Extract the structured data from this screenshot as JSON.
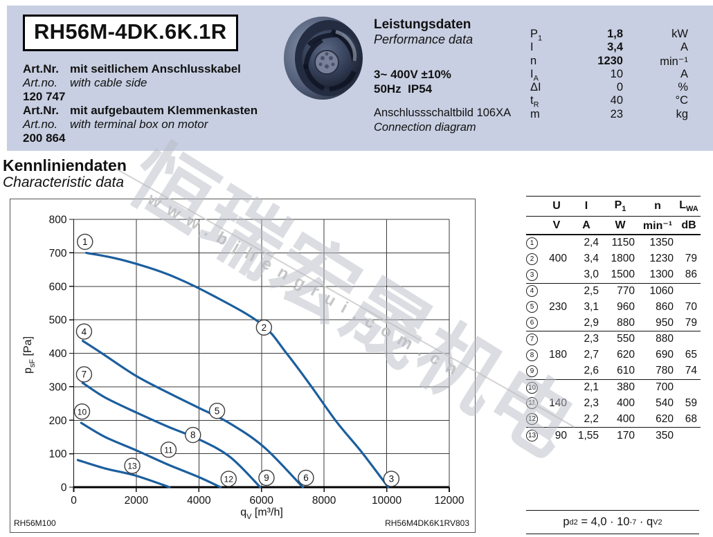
{
  "page": {
    "band_color": "#c8cfe2",
    "curve_blue": "#1b5e9e"
  },
  "header": {
    "model": "RH56M-4DK.6K.1R",
    "art_blocks": [
      {
        "label_de": "Art.Nr.",
        "text_de": "mit seitlichem Anschlusskabel",
        "label_en": "Art.no.",
        "text_en": "with cable side",
        "number": "120 747"
      },
      {
        "label_de": "Art.Nr.",
        "text_de": "mit aufgebautem Klemmenkasten",
        "label_en": "Art.no.",
        "text_en": "with terminal box on motor",
        "number": "200 864"
      }
    ],
    "fan_image": "centrifugal-fan-photo",
    "performance": {
      "title_de": "Leistungsdaten",
      "title_en": "Performance data",
      "voltage": "3~ 400V ±10%",
      "freq_ip": "50Hz  IP54",
      "connection_de": "Anschlussschaltbild 106XA",
      "connection_en": "Connection diagram",
      "params": [
        {
          "sym": "P",
          "sub": "1",
          "value": "1,8",
          "unit": "kW",
          "bold": true
        },
        {
          "sym": "I",
          "sub": "",
          "value": "3,4",
          "unit": "A",
          "bold": true
        },
        {
          "sym": "n",
          "sub": "",
          "value": "1230",
          "unit": "min⁻¹",
          "bold": true
        },
        {
          "sym": "I",
          "sub": "A",
          "value": "10",
          "unit": "A",
          "bold": false
        },
        {
          "sym": "ΔI",
          "sub": "",
          "value": "0",
          "unit": "%",
          "bold": false
        },
        {
          "sym": "t",
          "sub": "R",
          "value": "40",
          "unit": "°C",
          "bold": false
        },
        {
          "sym": "m",
          "sub": "",
          "value": "23",
          "unit": "kg",
          "bold": false
        }
      ]
    }
  },
  "section": {
    "title_de": "Kennliniendaten",
    "title_en": "Characteristic data"
  },
  "chart_data": {
    "type": "line",
    "xlabel_parts": [
      {
        "t": "q"
      },
      {
        "t": "V",
        "sub": true
      },
      {
        "t": " [m³/h]"
      }
    ],
    "ylabel_parts": [
      {
        "t": "p"
      },
      {
        "t": "sF",
        "sub": true
      },
      {
        "t": " [Pa]"
      }
    ],
    "xlim": [
      0,
      12000
    ],
    "ylim": [
      0,
      800
    ],
    "xticks": [
      0,
      2000,
      4000,
      6000,
      8000,
      10000,
      12000
    ],
    "yticks": [
      0,
      100,
      200,
      300,
      400,
      500,
      600,
      700,
      800
    ],
    "grid": true,
    "legend": "none",
    "curve_color": "#1b5e9e",
    "series": [
      {
        "name": "curve 1-2-3 (400 V)",
        "labels": [
          1,
          2,
          3
        ],
        "points": [
          [
            400,
            700
          ],
          [
            1500,
            680
          ],
          [
            3000,
            636
          ],
          [
            4500,
            570
          ],
          [
            6000,
            487
          ],
          [
            6800,
            400
          ],
          [
            7600,
            300
          ],
          [
            8400,
            195
          ],
          [
            9200,
            105
          ],
          [
            10050,
            0
          ]
        ]
      },
      {
        "name": "curve 4-5-6 (230 V)",
        "labels": [
          4,
          5,
          6
        ],
        "points": [
          [
            290,
            437
          ],
          [
            900,
            400
          ],
          [
            2000,
            332
          ],
          [
            3000,
            283
          ],
          [
            4000,
            237
          ],
          [
            5000,
            190
          ],
          [
            6100,
            118
          ],
          [
            7320,
            0
          ]
        ]
      },
      {
        "name": "curve 7-8-9 (180 V)",
        "labels": [
          7,
          8,
          9
        ],
        "points": [
          [
            280,
            312
          ],
          [
            1000,
            268
          ],
          [
            2000,
            223
          ],
          [
            3000,
            181
          ],
          [
            4000,
            143
          ],
          [
            5000,
            90
          ],
          [
            5960,
            0
          ]
        ]
      },
      {
        "name": "curve 10-11-12 (140 V)",
        "labels": [
          10,
          11,
          12
        ],
        "points": [
          [
            240,
            192
          ],
          [
            1000,
            150
          ],
          [
            2000,
            110
          ],
          [
            3000,
            68
          ],
          [
            4000,
            30
          ],
          [
            4690,
            0
          ]
        ]
      },
      {
        "name": "curve 13 (90 V)",
        "labels": [
          13
        ],
        "points": [
          [
            130,
            81
          ],
          [
            1000,
            56
          ],
          [
            2000,
            34
          ],
          [
            3060,
            0
          ]
        ]
      }
    ],
    "point_labels": [
      {
        "n": "1",
        "x": 360,
        "y": 733
      },
      {
        "n": "2",
        "x": 6080,
        "y": 477
      },
      {
        "n": "3",
        "x": 10150,
        "y": 25
      },
      {
        "n": "4",
        "x": 330,
        "y": 465
      },
      {
        "n": "5",
        "x": 4580,
        "y": 228
      },
      {
        "n": "6",
        "x": 7420,
        "y": 28
      },
      {
        "n": "7",
        "x": 330,
        "y": 337
      },
      {
        "n": "8",
        "x": 3810,
        "y": 156
      },
      {
        "n": "9",
        "x": 6160,
        "y": 28
      },
      {
        "n": "10",
        "x": 265,
        "y": 226
      },
      {
        "n": "11",
        "x": 3030,
        "y": 112
      },
      {
        "n": "12",
        "x": 4950,
        "y": 25
      },
      {
        "n": "13",
        "x": 1870,
        "y": 64
      }
    ],
    "footer_left": "RH56M100",
    "footer_right": "RH56M4DK6K1RV803"
  },
  "table": {
    "headers": [
      {
        "t": ""
      },
      {
        "t": "U"
      },
      {
        "t": "I"
      },
      {
        "t": "P",
        "sub": "1"
      },
      {
        "t": "n"
      },
      {
        "t": "L",
        "sub": "WA"
      }
    ],
    "units": [
      "",
      "V",
      "A",
      "W",
      "min⁻¹",
      "dB"
    ],
    "rows": [
      {
        "n": "1",
        "U": "",
        "I": "2,4",
        "P1": "1150",
        "rpm": "1350",
        "LWA": ""
      },
      {
        "n": "2",
        "U": "400",
        "I": "3,4",
        "P1": "1800",
        "rpm": "1230",
        "LWA": "79"
      },
      {
        "n": "3",
        "U": "",
        "I": "3,0",
        "P1": "1500",
        "rpm": "1300",
        "LWA": "86"
      },
      {
        "n": "4",
        "U": "",
        "I": "2,5",
        "P1": "770",
        "rpm": "1060",
        "LWA": ""
      },
      {
        "n": "5",
        "U": "230",
        "I": "3,1",
        "P1": "960",
        "rpm": "860",
        "LWA": "70"
      },
      {
        "n": "6",
        "U": "",
        "I": "2,9",
        "P1": "880",
        "rpm": "950",
        "LWA": "79"
      },
      {
        "n": "7",
        "U": "",
        "I": "2,3",
        "P1": "550",
        "rpm": "880",
        "LWA": ""
      },
      {
        "n": "8",
        "U": "180",
        "I": "2,7",
        "P1": "620",
        "rpm": "690",
        "LWA": "65"
      },
      {
        "n": "9",
        "U": "",
        "I": "2,6",
        "P1": "610",
        "rpm": "780",
        "LWA": "74"
      },
      {
        "n": "10",
        "U": "",
        "I": "2,1",
        "P1": "380",
        "rpm": "700",
        "LWA": ""
      },
      {
        "n": "11",
        "U": "140",
        "I": "2,3",
        "P1": "400",
        "rpm": "540",
        "LWA": "59"
      },
      {
        "n": "12",
        "U": "",
        "I": "2,2",
        "P1": "400",
        "rpm": "620",
        "LWA": "68"
      },
      {
        "n": "13",
        "U": "90",
        "I": "1,55",
        "P1": "170",
        "rpm": "350",
        "LWA": ""
      }
    ]
  },
  "formula": {
    "lhs": "p",
    "lhs_sub": "d2",
    "eq": " = 4,0 · 10",
    "exp": "-7",
    "mul": " · q",
    "q_sub": "V",
    "q_exp": "2"
  },
  "watermark": {
    "cjk": "恒瑞宏晟机电",
    "url": "www.bjhengrui.com.cn"
  }
}
